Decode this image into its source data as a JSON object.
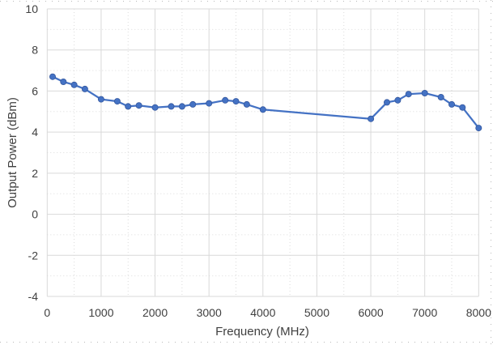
{
  "chart_data": {
    "type": "line",
    "title": "",
    "xlabel": "Frequency (MHz)",
    "ylabel": "Output Power (dBm)",
    "xlim": [
      0,
      8000
    ],
    "ylim": [
      -4,
      10
    ],
    "x_ticks": [
      0,
      1000,
      2000,
      3000,
      4000,
      5000,
      6000,
      7000,
      8000
    ],
    "y_ticks": [
      -4,
      -2,
      0,
      2,
      4,
      6,
      8,
      10
    ],
    "x_minor_step": 500,
    "y_minor_step": 1,
    "grid": {
      "major": "solid",
      "minor": "dotted"
    },
    "legend": "none",
    "colors": {
      "series": "#4472C4",
      "marker_edge": "#35589E",
      "gridline_major": "#D9D9D9",
      "gridline_minor": "#DBDBDB",
      "axis_text": "#404040",
      "page_border_dots": "#B8B8B8"
    },
    "series": [
      {
        "name": "Output Power",
        "color": "#4472C4",
        "marker": "circle",
        "points": [
          [
            100,
            6.7
          ],
          [
            300,
            6.45
          ],
          [
            500,
            6.3
          ],
          [
            700,
            6.1
          ],
          [
            1000,
            5.6
          ],
          [
            1300,
            5.5
          ],
          [
            1500,
            5.25
          ],
          [
            1700,
            5.3
          ],
          [
            2000,
            5.2
          ],
          [
            2300,
            5.25
          ],
          [
            2500,
            5.25
          ],
          [
            2700,
            5.35
          ],
          [
            3000,
            5.4
          ],
          [
            3300,
            5.55
          ],
          [
            3500,
            5.5
          ],
          [
            3700,
            5.35
          ],
          [
            4000,
            5.1
          ],
          [
            6000,
            4.65
          ],
          [
            6300,
            5.45
          ],
          [
            6500,
            5.55
          ],
          [
            6700,
            5.85
          ],
          [
            7000,
            5.9
          ],
          [
            7300,
            5.7
          ],
          [
            7500,
            5.35
          ],
          [
            7700,
            5.2
          ],
          [
            8000,
            4.2
          ]
        ]
      }
    ]
  }
}
